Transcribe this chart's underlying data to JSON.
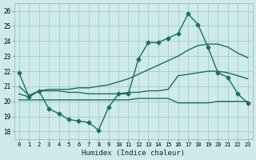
{
  "xlabel": "Humidex (Indice chaleur)",
  "xlim": [
    -0.5,
    23.5
  ],
  "ylim": [
    17.5,
    26.5
  ],
  "xticks": [
    0,
    1,
    2,
    3,
    4,
    5,
    6,
    7,
    8,
    9,
    10,
    11,
    12,
    13,
    14,
    15,
    16,
    17,
    18,
    19,
    20,
    21,
    22,
    23
  ],
  "yticks": [
    18,
    19,
    20,
    21,
    22,
    23,
    24,
    25,
    26
  ],
  "bg_color": "#ceeaea",
  "grid_color": "#aacfcf",
  "line_color": "#1a6e6a",
  "line1_x": [
    0,
    1,
    2,
    3,
    4,
    5,
    6,
    7,
    8,
    9,
    10,
    11,
    12,
    13,
    14,
    15,
    16,
    17,
    18,
    19,
    20,
    21,
    22,
    23
  ],
  "line1_y": [
    21.9,
    20.3,
    20.7,
    19.5,
    19.2,
    18.8,
    18.7,
    18.6,
    18.1,
    19.6,
    20.5,
    20.5,
    22.8,
    23.9,
    23.9,
    24.2,
    24.5,
    25.8,
    25.1,
    23.6,
    21.9,
    21.6,
    20.5,
    19.9
  ],
  "line2_x": [
    0,
    1,
    2,
    3,
    4,
    5,
    6,
    7,
    8,
    9,
    10,
    11,
    12,
    13,
    14,
    15,
    16,
    17,
    18,
    19,
    20,
    21,
    22,
    23
  ],
  "line2_y": [
    21.0,
    20.4,
    20.7,
    20.8,
    20.8,
    20.8,
    20.9,
    20.9,
    21.0,
    21.1,
    21.3,
    21.5,
    21.8,
    22.1,
    22.4,
    22.7,
    23.0,
    23.4,
    23.7,
    23.8,
    23.8,
    23.6,
    23.2,
    22.9
  ],
  "line3_x": [
    0,
    1,
    2,
    3,
    4,
    5,
    6,
    7,
    8,
    9,
    10,
    11,
    12,
    13,
    14,
    15,
    16,
    17,
    18,
    19,
    20,
    21,
    22,
    23
  ],
  "line3_y": [
    20.5,
    20.3,
    20.7,
    20.7,
    20.7,
    20.6,
    20.6,
    20.5,
    20.5,
    20.5,
    20.5,
    20.6,
    20.6,
    20.7,
    20.7,
    20.8,
    21.7,
    21.8,
    21.9,
    22.0,
    22.0,
    21.9,
    21.7,
    21.5
  ],
  "line4_x": [
    0,
    1,
    2,
    3,
    4,
    5,
    6,
    7,
    8,
    9,
    10,
    11,
    12,
    13,
    14,
    15,
    16,
    17,
    18,
    19,
    20,
    21,
    22,
    23
  ],
  "line4_y": [
    20.1,
    20.1,
    20.1,
    20.1,
    20.1,
    20.1,
    20.1,
    20.1,
    20.1,
    20.1,
    20.1,
    20.1,
    20.2,
    20.2,
    20.2,
    20.2,
    19.9,
    19.9,
    19.9,
    19.9,
    20.0,
    20.0,
    20.0,
    20.0
  ],
  "marker_size": 2.5,
  "line_width": 1.0
}
